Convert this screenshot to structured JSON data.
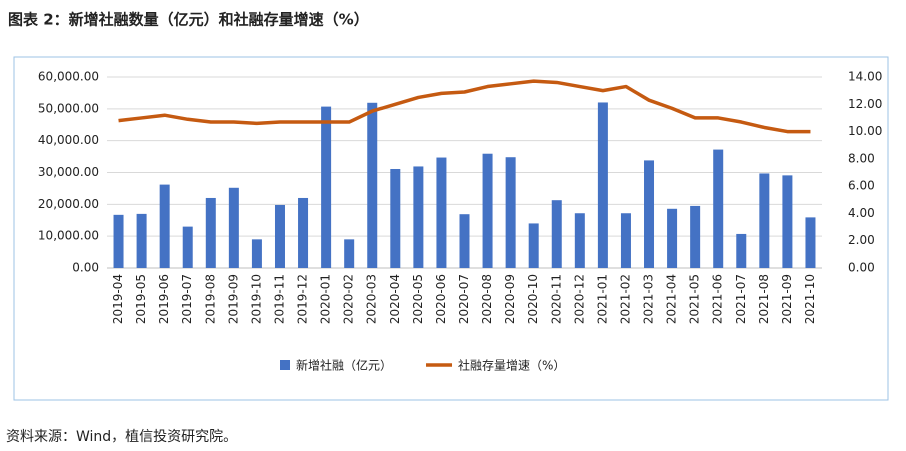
{
  "chart_data": {
    "type": "combo",
    "title": "图表 2：新增社融数量（亿元）和社融存量增速（%）",
    "source": "资料来源：Wind，植信投资研究院。",
    "categories": [
      "2019-04",
      "2019-05",
      "2019-06",
      "2019-07",
      "2019-08",
      "2019-09",
      "2019-10",
      "2019-11",
      "2019-12",
      "2020-01",
      "2020-02",
      "2020-03",
      "2020-04",
      "2020-05",
      "2020-06",
      "2020-07",
      "2020-08",
      "2020-09",
      "2020-10",
      "2020-11",
      "2020-12",
      "2021-01",
      "2021-02",
      "2021-03",
      "2021-04",
      "2021-05",
      "2021-06",
      "2021-07",
      "2021-08",
      "2021-09",
      "2021-10"
    ],
    "series": [
      {
        "name": "新增社融（亿元）",
        "type": "bar",
        "color": "#4472c4",
        "values": [
          16700,
          17000,
          26200,
          13000,
          22000,
          25200,
          9000,
          19800,
          22000,
          50700,
          9000,
          51900,
          31100,
          31900,
          34700,
          16900,
          35900,
          34800,
          14000,
          21300,
          17200,
          52000,
          17200,
          33800,
          18600,
          19500,
          37200,
          10700,
          29700,
          29100,
          15900
        ]
      },
      {
        "name": "社融存量增速（%）",
        "type": "line",
        "axis": "y2",
        "color": "#c55a11",
        "values": [
          10.8,
          11.0,
          11.2,
          10.9,
          10.7,
          10.7,
          10.6,
          10.7,
          10.7,
          10.7,
          10.7,
          11.5,
          12.0,
          12.5,
          12.8,
          12.9,
          13.3,
          13.5,
          13.7,
          13.6,
          13.3,
          13.0,
          13.3,
          12.3,
          11.7,
          11.0,
          11.0,
          10.7,
          10.3,
          10.0,
          10.0
        ]
      }
    ],
    "ylim": [
      0,
      60000
    ],
    "yticks": [
      {
        "value": 0,
        "label": "0.00"
      },
      {
        "value": 10000,
        "label": "10,000.00"
      },
      {
        "value": 20000,
        "label": "20,000.00"
      },
      {
        "value": 30000,
        "label": "30,000.00"
      },
      {
        "value": 40000,
        "label": "40,000.00"
      },
      {
        "value": 50000,
        "label": "50,000.00"
      },
      {
        "value": 60000,
        "label": "60,000.00"
      }
    ],
    "y2lim": [
      0,
      14
    ],
    "y2ticks": [
      {
        "value": 0,
        "label": "0.00"
      },
      {
        "value": 2,
        "label": "2.00"
      },
      {
        "value": 4,
        "label": "4.00"
      },
      {
        "value": 6,
        "label": "6.00"
      },
      {
        "value": 8,
        "label": "8.00"
      },
      {
        "value": 10,
        "label": "10.00"
      },
      {
        "value": 12,
        "label": "12.00"
      },
      {
        "value": 14,
        "label": "14.00"
      }
    ],
    "grid": true,
    "legend": "bottom"
  }
}
